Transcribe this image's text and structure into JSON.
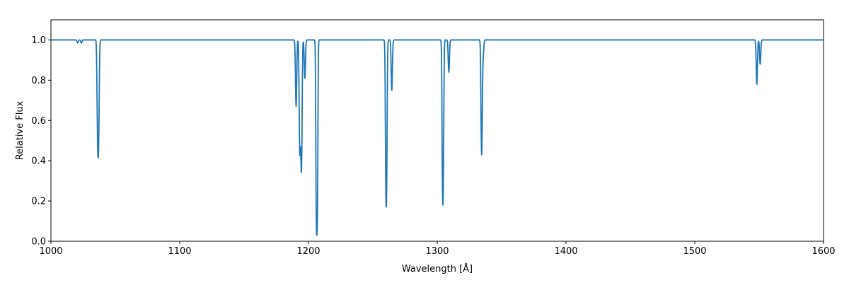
{
  "chart_data": {
    "type": "line",
    "title": "",
    "xlabel": "Wavelength [Å]",
    "ylabel": "Relative Flux",
    "xlim": [
      1000,
      1600
    ],
    "ylim": [
      0,
      1.1
    ],
    "grid": false,
    "continuum": 1.0,
    "line_color": "#1f77b4",
    "x_ticks": [
      1000,
      1100,
      1200,
      1300,
      1400,
      1500,
      1600
    ],
    "x_tick_labels": [
      "1000",
      "1100",
      "1200",
      "1300",
      "1400",
      "1500",
      "1600"
    ],
    "y_ticks": [
      0.0,
      0.2,
      0.4,
      0.6,
      0.8,
      1.0
    ],
    "y_tick_labels": [
      "0.0",
      "0.2",
      "0.4",
      "0.6",
      "0.8",
      "1.0"
    ],
    "absorption_lines": [
      {
        "wavelength": 1020.7,
        "min_flux": 0.985
      },
      {
        "wavelength": 1023.6,
        "min_flux": 0.985
      },
      {
        "wavelength": 1036.3,
        "min_flux": 0.55
      },
      {
        "wavelength": 1037.0,
        "min_flux": 0.55
      },
      {
        "wavelength": 1190.4,
        "min_flux": 0.67
      },
      {
        "wavelength": 1193.3,
        "min_flux": 0.44
      },
      {
        "wavelength": 1194.5,
        "min_flux": 0.35
      },
      {
        "wavelength": 1197.2,
        "min_flux": 0.81
      },
      {
        "wavelength": 1206.5,
        "min_flux": 0.03
      },
      {
        "wavelength": 1260.4,
        "min_flux": 0.17
      },
      {
        "wavelength": 1264.7,
        "min_flux": 0.75
      },
      {
        "wavelength": 1304.4,
        "min_flux": 0.18
      },
      {
        "wavelength": 1309.0,
        "min_flux": 0.84
      },
      {
        "wavelength": 1334.5,
        "min_flux": 0.43
      },
      {
        "wavelength": 1335.7,
        "min_flux": 0.93
      },
      {
        "wavelength": 1548.2,
        "min_flux": 0.78
      },
      {
        "wavelength": 1550.8,
        "min_flux": 0.88
      }
    ]
  }
}
